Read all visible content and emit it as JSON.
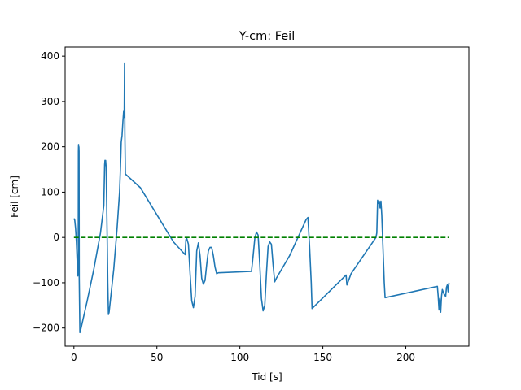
{
  "chart_data": {
    "type": "line",
    "title": "Y-cm: Feil",
    "xlabel": "Tid [s]",
    "ylabel": "Feil [cm]",
    "xlim": [
      -5.3,
      238
    ],
    "ylim": [
      -240,
      420
    ],
    "xticks": [
      0,
      50,
      100,
      150,
      200
    ],
    "yticks": [
      -200,
      -100,
      0,
      100,
      200,
      300,
      400
    ],
    "xtick_labels": [
      "0",
      "50",
      "100",
      "150",
      "200"
    ],
    "ytick_labels": [
      "−200",
      "−100",
      "0",
      "100",
      "200",
      "300",
      "400"
    ],
    "grid": false,
    "series": [
      {
        "style": "solid",
        "color": "#1f77b4",
        "points": [
          [
            0.0,
            42
          ],
          [
            0.5,
            38
          ],
          [
            1.0,
            20
          ],
          [
            1.5,
            -10
          ],
          [
            2.0,
            -55
          ],
          [
            2.4,
            -85
          ],
          [
            2.6,
            -60
          ],
          [
            2.7,
            190
          ],
          [
            2.8,
            205
          ],
          [
            2.9,
            140
          ],
          [
            3.0,
            200
          ],
          [
            3.1,
            190
          ],
          [
            3.2,
            -90
          ],
          [
            3.4,
            -150
          ],
          [
            3.6,
            -210
          ],
          [
            4.0,
            -205
          ],
          [
            8.0,
            -140
          ],
          [
            12.0,
            -70
          ],
          [
            16.0,
            10
          ],
          [
            18.0,
            70
          ],
          [
            18.5,
            160
          ],
          [
            18.7,
            170
          ],
          [
            18.9,
            160
          ],
          [
            19.1,
            170
          ],
          [
            19.4,
            155
          ],
          [
            20.0,
            10
          ],
          [
            20.4,
            -100
          ],
          [
            20.8,
            -170
          ],
          [
            21.2,
            -165
          ],
          [
            24.0,
            -70
          ],
          [
            26.0,
            20
          ],
          [
            27.5,
            100
          ],
          [
            28.0,
            150
          ],
          [
            28.5,
            210
          ],
          [
            29.0,
            225
          ],
          [
            29.5,
            255
          ],
          [
            30.0,
            280
          ],
          [
            30.3,
            265
          ],
          [
            30.5,
            385
          ],
          [
            30.7,
            230
          ],
          [
            31.0,
            140
          ],
          [
            40.0,
            110
          ],
          [
            50.0,
            50
          ],
          [
            60.0,
            -10
          ],
          [
            67.0,
            -38
          ],
          [
            67.5,
            -5
          ],
          [
            68.0,
            -2
          ],
          [
            69.0,
            -15
          ],
          [
            70.0,
            -80
          ],
          [
            71.0,
            -140
          ],
          [
            72.0,
            -155
          ],
          [
            73.0,
            -130
          ],
          [
            74.0,
            -30
          ],
          [
            75.0,
            -12
          ],
          [
            76.0,
            -40
          ],
          [
            77.0,
            -90
          ],
          [
            78.0,
            -103
          ],
          [
            79.0,
            -95
          ],
          [
            80.0,
            -60
          ],
          [
            81.0,
            -30
          ],
          [
            82.0,
            -22
          ],
          [
            83.0,
            -22
          ],
          [
            84.0,
            -40
          ],
          [
            85.0,
            -65
          ],
          [
            86.0,
            -80
          ],
          [
            87.0,
            -78
          ],
          [
            107.0,
            -75
          ],
          [
            108.0,
            -40
          ],
          [
            109.0,
            -2
          ],
          [
            110.0,
            12
          ],
          [
            111.0,
            5
          ],
          [
            112.0,
            -60
          ],
          [
            113.0,
            -135
          ],
          [
            114.0,
            -162
          ],
          [
            115.0,
            -150
          ],
          [
            116.0,
            -80
          ],
          [
            117.0,
            -20
          ],
          [
            118.0,
            -10
          ],
          [
            119.0,
            -15
          ],
          [
            120.0,
            -60
          ],
          [
            121.0,
            -98
          ],
          [
            122.0,
            -90
          ],
          [
            130.0,
            -40
          ],
          [
            135.0,
            0
          ],
          [
            140.0,
            40
          ],
          [
            141.0,
            44
          ],
          [
            142.0,
            -20
          ],
          [
            143.0,
            -100
          ],
          [
            143.5,
            -157
          ],
          [
            164.0,
            -83
          ],
          [
            164.5,
            -105
          ],
          [
            167.0,
            -80
          ],
          [
            182.0,
            0
          ],
          [
            182.5,
            10
          ],
          [
            183.0,
            82
          ],
          [
            183.5,
            75
          ],
          [
            184.0,
            80
          ],
          [
            184.5,
            65
          ],
          [
            185.0,
            80
          ],
          [
            185.5,
            50
          ],
          [
            187.0,
            -100
          ],
          [
            187.5,
            -133
          ],
          [
            219.0,
            -108
          ],
          [
            219.5,
            -130
          ],
          [
            220.0,
            -160
          ],
          [
            220.5,
            -135
          ],
          [
            221.0,
            -165
          ],
          [
            221.5,
            -130
          ],
          [
            222.0,
            -115
          ],
          [
            223.0,
            -125
          ],
          [
            224.0,
            -130
          ],
          [
            224.5,
            -110
          ],
          [
            225.0,
            -105
          ],
          [
            225.5,
            -120
          ],
          [
            226.0,
            -100
          ]
        ]
      },
      {
        "style": "dashed",
        "color": "#008000",
        "points": [
          [
            0.0,
            0
          ],
          [
            226.0,
            0
          ]
        ]
      }
    ]
  }
}
